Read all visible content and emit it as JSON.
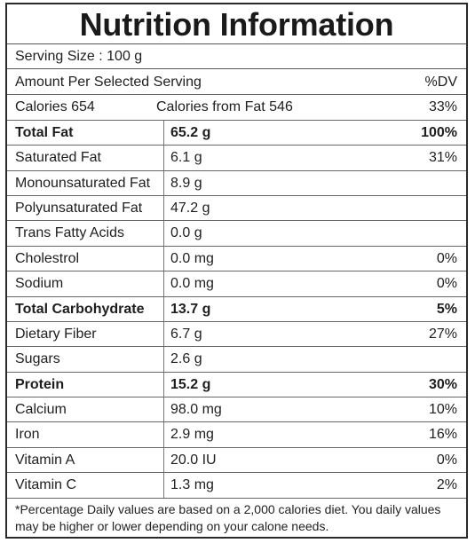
{
  "title": "Nutrition Information",
  "serving_size": "Serving Size : 100 g",
  "header": {
    "amount": "Amount Per Selected Serving",
    "dv": "%DV"
  },
  "calories": {
    "label": "Calories 654",
    "fat": "Calories from Fat 546",
    "dv": "33%"
  },
  "nutrients": [
    {
      "name": "Total Fat",
      "amount": "65.2 g",
      "dv": "100%",
      "bold": true
    },
    {
      "name": "Saturated Fat",
      "amount": "6.1 g",
      "dv": "31%",
      "bold": false
    },
    {
      "name": "Monounsaturated Fat",
      "amount": "8.9 g",
      "dv": "",
      "bold": false
    },
    {
      "name": "Polyunsaturated Fat",
      "amount": "47.2 g",
      "dv": "",
      "bold": false
    },
    {
      "name": "Trans Fatty Acids",
      "amount": "0.0 g",
      "dv": "",
      "bold": false
    },
    {
      "name": "Cholestrol",
      "amount": "0.0 mg",
      "dv": "0%",
      "bold": false
    },
    {
      "name": "Sodium",
      "amount": "0.0 mg",
      "dv": "0%",
      "bold": false
    },
    {
      "name": "Total Carbohydrate",
      "amount": "13.7 g",
      "dv": "5%",
      "bold": true
    },
    {
      "name": "Dietary Fiber",
      "amount": "6.7 g",
      "dv": "27%",
      "bold": false
    },
    {
      "name": "Sugars",
      "amount": "2.6 g",
      "dv": "",
      "bold": false
    },
    {
      "name": "Protein",
      "amount": "15.2 g",
      "dv": "30%",
      "bold": true
    },
    {
      "name": "Calcium",
      "amount": "98.0 mg",
      "dv": "10%",
      "bold": false
    },
    {
      "name": "Iron",
      "amount": "2.9 mg",
      "dv": "16%",
      "bold": false
    },
    {
      "name": "Vitamin A",
      "amount": "20.0 IU",
      "dv": "0%",
      "bold": false
    },
    {
      "name": "Vitamin C",
      "amount": "1.3 mg",
      "dv": "2%",
      "bold": false
    }
  ],
  "footnote": "*Percentage Daily values are based on a 2,000 calories diet. You daily values may be higher or lower depending on your calone needs."
}
